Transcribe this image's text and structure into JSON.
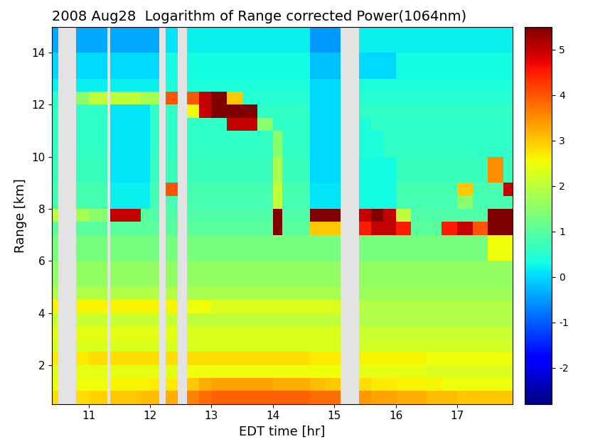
{
  "chart_data": {
    "type": "heatmap",
    "title": "2008 Aug28  Logarithm of Range corrected Power(1064nm)",
    "x_label": "EDT time [hr]",
    "y_label": "Range [km]",
    "color": "jet",
    "x_edges": [
      10.4,
      10.5,
      10.8,
      11.0,
      11.3,
      11.35,
      11.6,
      11.85,
      12.0,
      12.15,
      12.25,
      12.45,
      12.6,
      12.8,
      13.0,
      13.25,
      13.5,
      13.75,
      14.0,
      14.15,
      14.4,
      14.6,
      14.85,
      15.1,
      15.4,
      15.6,
      15.8,
      16.0,
      16.25,
      16.5,
      16.75,
      17.0,
      17.25,
      17.5,
      17.75,
      17.9
    ],
    "y_edges": [
      0.5,
      1,
      1.5,
      2,
      2.5,
      3,
      3.5,
      4,
      4.5,
      5,
      6,
      7,
      7.5,
      8,
      8.5,
      9,
      10,
      11,
      11.5,
      12,
      12.5,
      13,
      14,
      15
    ],
    "cells": [
      [
        2.8,
        null,
        2.8,
        2.9,
        null,
        3.0,
        3.0,
        3.1,
        3.1,
        null,
        3.2,
        null,
        3.6,
        3.8,
        3.9,
        3.9,
        3.9,
        3.9,
        3.9,
        3.9,
        3.9,
        3.8,
        3.8,
        null,
        3.4,
        3.3,
        3.3,
        3.2,
        3.2,
        3.1,
        3.1,
        3.0,
        3.0,
        3.0,
        3.0
      ],
      [
        2.5,
        null,
        2.5,
        2.5,
        null,
        2.6,
        2.6,
        2.6,
        2.7,
        null,
        2.7,
        null,
        3.0,
        3.2,
        3.3,
        3.3,
        3.3,
        3.3,
        3.2,
        3.2,
        3.2,
        3.1,
        3.0,
        null,
        2.8,
        2.7,
        2.7,
        2.6,
        2.6,
        2.6,
        2.5,
        2.5,
        2.5,
        2.5,
        2.5
      ],
      [
        2.4,
        null,
        2.4,
        2.4,
        null,
        2.4,
        2.4,
        2.4,
        2.4,
        null,
        2.4,
        null,
        2.5,
        2.5,
        2.5,
        2.5,
        2.5,
        2.5,
        2.5,
        2.5,
        2.5,
        2.5,
        2.5,
        null,
        2.4,
        2.4,
        2.4,
        2.4,
        2.4,
        2.3,
        2.3,
        2.3,
        2.3,
        2.3,
        2.3
      ],
      [
        2.7,
        null,
        2.7,
        2.8,
        null,
        2.8,
        2.8,
        2.8,
        2.8,
        null,
        2.8,
        null,
        2.8,
        2.8,
        2.8,
        2.8,
        2.8,
        2.8,
        2.8,
        2.8,
        2.8,
        2.7,
        2.7,
        null,
        2.6,
        2.6,
        2.6,
        2.6,
        2.6,
        2.5,
        2.5,
        2.5,
        2.5,
        2.5,
        2.5
      ],
      [
        2.3,
        null,
        2.3,
        2.3,
        null,
        2.3,
        2.3,
        2.3,
        2.3,
        null,
        2.3,
        null,
        2.3,
        2.3,
        2.3,
        2.3,
        2.3,
        2.3,
        2.3,
        2.3,
        2.3,
        2.3,
        2.3,
        null,
        2.2,
        2.2,
        2.2,
        2.2,
        2.2,
        2.2,
        2.2,
        2.2,
        2.2,
        2.2,
        2.2
      ],
      [
        2.4,
        null,
        2.4,
        2.4,
        null,
        2.4,
        2.4,
        2.4,
        2.4,
        null,
        2.4,
        null,
        2.3,
        2.3,
        2.3,
        2.3,
        2.3,
        2.3,
        2.3,
        2.3,
        2.3,
        2.3,
        2.3,
        null,
        2.1,
        2.1,
        2.1,
        2.1,
        2.1,
        2.1,
        2.1,
        2.1,
        2.1,
        2.1,
        2.1
      ],
      [
        2.1,
        null,
        2.1,
        2.1,
        null,
        2.1,
        2.1,
        2.1,
        2.1,
        null,
        2.1,
        null,
        2.0,
        2.0,
        2.0,
        2.0,
        2.0,
        2.0,
        2.0,
        2.0,
        2.0,
        2.0,
        2.0,
        null,
        1.9,
        1.9,
        1.9,
        1.9,
        1.9,
        1.9,
        1.9,
        1.9,
        1.9,
        1.9,
        1.9
      ],
      [
        2.6,
        null,
        2.6,
        2.6,
        null,
        2.6,
        2.6,
        2.6,
        2.6,
        null,
        2.6,
        null,
        2.5,
        2.5,
        2.3,
        2.3,
        2.3,
        2.3,
        2.3,
        2.3,
        2.3,
        2.3,
        2.3,
        null,
        1.9,
        1.9,
        1.9,
        1.9,
        1.9,
        1.9,
        1.9,
        1.9,
        1.9,
        1.9,
        1.9
      ],
      [
        1.9,
        null,
        1.9,
        1.9,
        null,
        1.9,
        1.9,
        1.9,
        1.9,
        null,
        1.9,
        null,
        1.8,
        1.8,
        1.8,
        1.8,
        1.8,
        1.8,
        1.8,
        1.8,
        1.8,
        1.8,
        1.8,
        null,
        1.7,
        1.7,
        1.7,
        1.7,
        1.7,
        1.7,
        1.7,
        1.7,
        1.7,
        1.7,
        1.7
      ],
      [
        1.6,
        null,
        1.6,
        1.6,
        null,
        1.6,
        1.6,
        1.6,
        1.6,
        null,
        1.6,
        null,
        1.6,
        1.6,
        1.6,
        1.6,
        1.6,
        1.6,
        1.6,
        1.6,
        1.6,
        1.6,
        1.6,
        null,
        1.6,
        1.6,
        1.6,
        1.6,
        1.6,
        1.6,
        1.6,
        1.6,
        1.6,
        1.6,
        1.6
      ],
      [
        1.3,
        null,
        1.3,
        1.3,
        null,
        1.3,
        1.3,
        1.3,
        1.3,
        null,
        1.3,
        null,
        1.3,
        1.3,
        1.3,
        1.3,
        1.3,
        1.3,
        1.3,
        1.3,
        1.3,
        1.3,
        1.3,
        null,
        1.3,
        1.3,
        1.3,
        1.3,
        1.3,
        1.3,
        1.3,
        1.3,
        1.3,
        2.5,
        2.5
      ],
      [
        1.0,
        null,
        1.0,
        1.0,
        null,
        1.0,
        1.0,
        1.0,
        1.0,
        null,
        1.0,
        null,
        1.0,
        1.0,
        1.0,
        1.0,
        1.0,
        1.0,
        5.5,
        1.0,
        1.0,
        3.0,
        3.0,
        null,
        4.5,
        5.0,
        5.0,
        4.5,
        1.0,
        1.0,
        4.5,
        5.0,
        4.0,
        5.5,
        5.5
      ],
      [
        2.0,
        null,
        1.8,
        1.5,
        null,
        5.0,
        5.0,
        1.0,
        0.9,
        null,
        0.9,
        null,
        0.9,
        0.9,
        0.9,
        0.9,
        0.9,
        0.9,
        5.5,
        0.9,
        0.9,
        5.5,
        5.5,
        null,
        5.0,
        5.5,
        5.0,
        2.0,
        0.9,
        0.9,
        0.9,
        0.9,
        0.9,
        5.5,
        5.5
      ],
      [
        0.8,
        null,
        0.8,
        0.8,
        null,
        0.2,
        0.2,
        0.2,
        0.8,
        null,
        0.8,
        null,
        0.8,
        0.8,
        0.8,
        0.8,
        0.8,
        0.8,
        2.0,
        0.8,
        0.8,
        0.1,
        0.1,
        null,
        0.3,
        0.3,
        0.3,
        0.8,
        0.8,
        0.8,
        0.8,
        1.5,
        0.8,
        0.8,
        0.8
      ],
      [
        0.8,
        null,
        0.8,
        0.8,
        null,
        0.2,
        0.2,
        0.2,
        0.8,
        null,
        4.0,
        null,
        0.8,
        0.8,
        0.8,
        0.8,
        0.8,
        0.8,
        2.0,
        0.8,
        0.8,
        0.1,
        0.1,
        null,
        0.3,
        0.3,
        0.3,
        0.8,
        0.8,
        0.8,
        0.8,
        3.0,
        0.8,
        0.8,
        5.0
      ],
      [
        0.7,
        null,
        0.7,
        0.7,
        null,
        0.1,
        0.1,
        0.1,
        0.7,
        null,
        0.7,
        null,
        0.7,
        0.7,
        0.7,
        0.7,
        0.7,
        0.7,
        1.8,
        0.7,
        0.7,
        0.0,
        0.0,
        null,
        0.3,
        0.3,
        0.3,
        0.7,
        0.7,
        0.7,
        0.7,
        0.7,
        0.7,
        3.5,
        0.7
      ],
      [
        0.6,
        null,
        0.6,
        0.6,
        null,
        0.1,
        0.1,
        0.1,
        0.6,
        null,
        0.6,
        null,
        0.6,
        0.6,
        0.6,
        0.6,
        0.6,
        0.6,
        1.5,
        0.6,
        0.6,
        0.0,
        0.0,
        null,
        0.4,
        0.4,
        0.6,
        0.6,
        0.6,
        0.6,
        0.6,
        0.6,
        0.6,
        0.6,
        0.6
      ],
      [
        0.6,
        null,
        0.6,
        0.6,
        null,
        0.1,
        0.1,
        0.1,
        0.6,
        null,
        0.6,
        null,
        0.6,
        0.6,
        0.6,
        5.0,
        5.0,
        1.5,
        0.6,
        0.6,
        0.6,
        0.0,
        0.0,
        null,
        0.4,
        0.6,
        0.6,
        0.6,
        0.6,
        0.6,
        0.6,
        0.6,
        0.6,
        0.6,
        0.6
      ],
      [
        0.6,
        null,
        0.6,
        0.6,
        null,
        0.1,
        0.1,
        0.1,
        0.6,
        null,
        0.6,
        null,
        2.5,
        5.0,
        5.5,
        5.5,
        5.5,
        0.6,
        0.6,
        0.6,
        0.6,
        0.0,
        0.0,
        null,
        0.6,
        0.6,
        0.6,
        0.6,
        0.6,
        0.6,
        0.6,
        0.6,
        0.6,
        0.6,
        0.6
      ],
      [
        0.5,
        null,
        1.5,
        2.0,
        null,
        2.0,
        2.0,
        1.8,
        1.8,
        null,
        4.0,
        null,
        4.0,
        5.0,
        5.5,
        3.0,
        0.5,
        0.5,
        0.5,
        0.5,
        0.5,
        0.0,
        0.0,
        null,
        0.5,
        0.5,
        0.5,
        0.5,
        0.5,
        0.5,
        0.5,
        0.5,
        0.5,
        0.5,
        0.5
      ],
      [
        0.2,
        null,
        0.2,
        0.2,
        null,
        0.2,
        0.2,
        0.2,
        0.2,
        null,
        0.4,
        null,
        0.4,
        0.4,
        0.4,
        0.4,
        0.4,
        0.4,
        0.4,
        0.4,
        0.4,
        0.0,
        0.0,
        null,
        0.4,
        0.4,
        0.4,
        0.4,
        0.4,
        0.4,
        0.4,
        0.4,
        0.4,
        0.4,
        0.4
      ],
      [
        0.0,
        null,
        0.0,
        0.0,
        null,
        0.0,
        0.0,
        0.0,
        0.0,
        null,
        0.3,
        null,
        0.3,
        0.3,
        0.3,
        0.3,
        0.3,
        0.3,
        0.3,
        0.3,
        0.3,
        -0.2,
        -0.2,
        null,
        0.0,
        0.0,
        0.0,
        0.3,
        0.3,
        0.3,
        0.3,
        0.3,
        0.3,
        0.3,
        0.3
      ],
      [
        -0.4,
        null,
        -0.4,
        -0.4,
        null,
        -0.4,
        -0.4,
        -0.4,
        -0.4,
        null,
        0.1,
        null,
        0.2,
        0.2,
        0.2,
        0.2,
        0.2,
        0.2,
        0.2,
        0.2,
        0.2,
        -0.5,
        -0.5,
        null,
        0.2,
        0.2,
        0.2,
        0.2,
        0.2,
        0.2,
        0.2,
        0.2,
        0.2,
        0.2,
        0.2
      ]
    ],
    "xlim": [
      10.4,
      17.9
    ],
    "ylim": [
      0.5,
      15
    ],
    "xticks": [
      11,
      12,
      13,
      14,
      15,
      16,
      17
    ],
    "yticks": [
      2,
      4,
      6,
      8,
      10,
      12,
      14
    ],
    "color_range": [
      -2.8,
      5.5
    ],
    "color_ticks": [
      -2,
      -1,
      0,
      1,
      2,
      3,
      4,
      5
    ]
  }
}
